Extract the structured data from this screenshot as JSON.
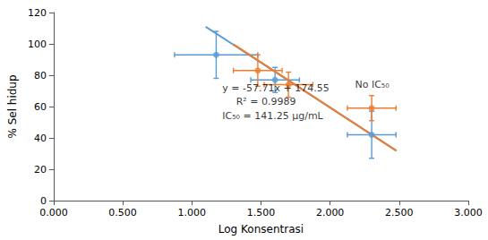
{
  "chart_data": {
    "type": "scatter",
    "xlabel": "Log Konsentrasi",
    "ylabel": "% Sel hidup",
    "xlim": [
      0.0,
      3.0
    ],
    "ylim": [
      0,
      120
    ],
    "xticks": [
      {
        "value": 0.0,
        "label": "0.000"
      },
      {
        "value": 0.5,
        "label": "0.500"
      },
      {
        "value": 1.0,
        "label": "1.000"
      },
      {
        "value": 1.5,
        "label": "1.500"
      },
      {
        "value": 2.0,
        "label": "2.000"
      },
      {
        "value": 2.5,
        "label": "2.500"
      },
      {
        "value": 3.0,
        "label": "3.000"
      }
    ],
    "yticks": [
      0,
      20,
      40,
      60,
      80,
      100,
      120
    ],
    "grid": false,
    "series": [
      {
        "type": "line",
        "color": "#5B9BD5",
        "x": [
          1.1,
          2.48
        ],
        "values": [
          110.97,
          31.81
        ]
      },
      {
        "type": "line",
        "color": "#ED7D31",
        "x": [
          1.3,
          2.48
        ],
        "values": [
          99.75,
          31.81
        ]
      },
      {
        "type": "scatter",
        "color": "#5B9BD5",
        "x": [
          1.176,
          1.602,
          2.301
        ],
        "values": [
          93,
          77,
          42
        ],
        "xerr": [
          0.301,
          0.176,
          0.176
        ],
        "yerr": [
          15,
          8,
          15
        ]
      },
      {
        "type": "scatter",
        "color": "#ED7D31",
        "x": [
          1.477,
          1.699,
          2.301
        ],
        "values": [
          83,
          74,
          59
        ],
        "xerr": [
          0.176,
          0.176,
          0.176
        ],
        "yerr": [
          10,
          8,
          8
        ]
      }
    ],
    "annotations": [
      {
        "text": "No IC₅₀",
        "x": 2.18,
        "y": 74
      },
      {
        "text": "y = -57.71x + 174.55",
        "x": 1.22,
        "y": 72
      },
      {
        "text": "R² = 0.9989",
        "x": 1.32,
        "y": 63
      },
      {
        "text": "IC₅₀ = 141.25 μg/mL",
        "x": 1.22,
        "y": 54
      }
    ]
  }
}
